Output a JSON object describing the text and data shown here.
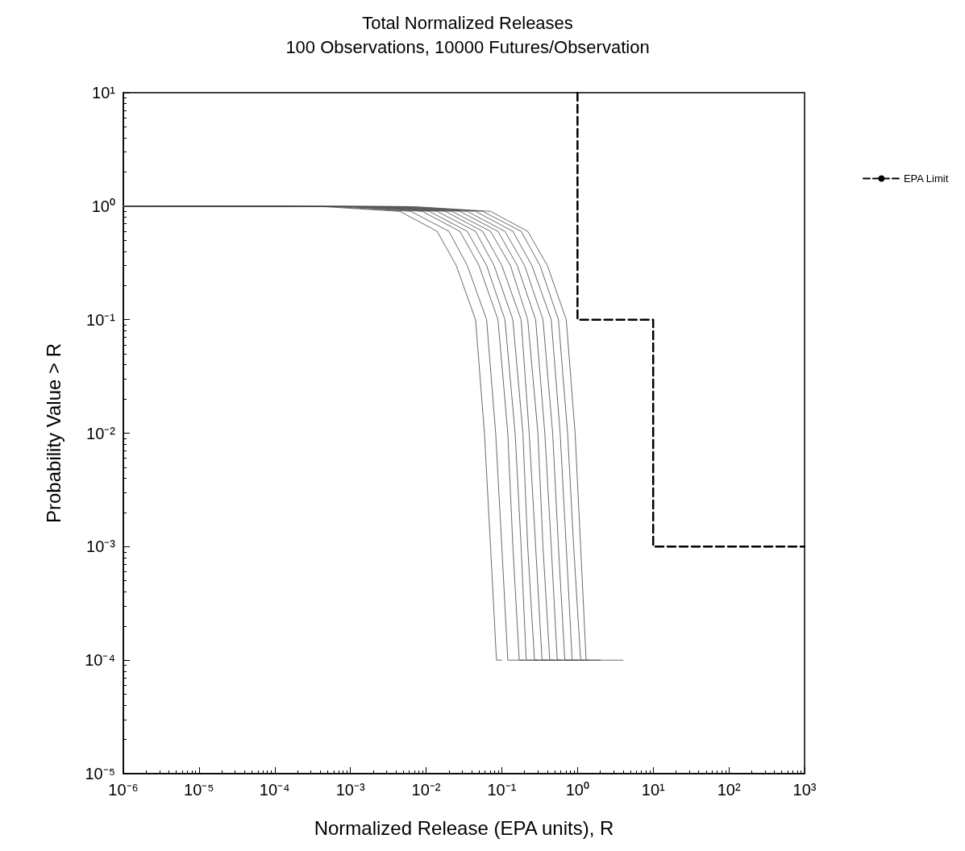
{
  "chart_data": {
    "type": "line",
    "title": "Total Normalized Releases",
    "subtitle": "100 Observations, 10000 Futures/Observation",
    "xlabel": "Normalized Release (EPA units), R",
    "ylabel": "Probability Value > R",
    "log": "xy",
    "grid": false,
    "legend": "right",
    "marker": "none",
    "xlim": [
      1e-06,
      1000
    ],
    "ylim": [
      1e-05,
      10
    ],
    "xticks": [
      {
        "value": 1e-06,
        "label": "10⁻⁶"
      },
      {
        "value": 1e-05,
        "label": "10⁻⁵"
      },
      {
        "value": 0.0001,
        "label": "10⁻⁴"
      },
      {
        "value": 0.001,
        "label": "10⁻³"
      },
      {
        "value": 0.01,
        "label": "10⁻²"
      },
      {
        "value": 0.1,
        "label": "10⁻¹"
      },
      {
        "value": 1,
        "label": "10⁰"
      },
      {
        "value": 10,
        "label": "10¹"
      },
      {
        "value": 100,
        "label": "10²"
      },
      {
        "value": 1000,
        "label": "10³"
      }
    ],
    "yticks": [
      {
        "value": 1e-05,
        "label": "10⁻⁵"
      },
      {
        "value": 0.0001,
        "label": "10⁻⁴"
      },
      {
        "value": 0.001,
        "label": "10⁻³"
      },
      {
        "value": 0.01,
        "label": "10⁻²"
      },
      {
        "value": 0.1,
        "label": "10⁻¹"
      },
      {
        "value": 1,
        "label": "10⁰"
      },
      {
        "value": 10,
        "label": "10¹"
      }
    ],
    "series": [
      {
        "color": "#444444",
        "line_style": "solid",
        "x": [
          1e-06,
          0.00045,
          0.0045,
          0.014,
          0.025,
          0.045,
          0.059,
          0.071,
          0.085,
          0.1
        ],
        "values": [
          1,
          0.99,
          0.9,
          0.6,
          0.3,
          0.1,
          0.01,
          0.001,
          0.0001,
          0.0001
        ]
      },
      {
        "color": "#444444",
        "line_style": "solid",
        "x": [
          1e-06,
          0.00063,
          0.0063,
          0.02,
          0.035,
          0.063,
          0.083,
          0.1,
          0.12,
          0.2
        ],
        "values": [
          1,
          0.99,
          0.9,
          0.6,
          0.3,
          0.1,
          0.01,
          0.001,
          0.0001,
          0.0001
        ]
      },
      {
        "color": "#444444",
        "line_style": "solid",
        "x": [
          1e-06,
          0.00089,
          0.0089,
          0.028,
          0.05,
          0.089,
          0.12,
          0.14,
          0.17,
          0.3
        ],
        "values": [
          1,
          0.99,
          0.9,
          0.6,
          0.3,
          0.1,
          0.01,
          0.001,
          0.0001,
          0.0001
        ]
      },
      {
        "color": "#444444",
        "line_style": "solid",
        "x": [
          1e-06,
          0.0011,
          0.011,
          0.035,
          0.063,
          0.11,
          0.15,
          0.18,
          0.21,
          0.4
        ],
        "values": [
          1,
          0.99,
          0.9,
          0.6,
          0.3,
          0.1,
          0.01,
          0.001,
          0.0001,
          0.0001
        ]
      },
      {
        "color": "#444444",
        "line_style": "solid",
        "x": [
          1e-06,
          0.0014,
          0.014,
          0.045,
          0.079,
          0.14,
          0.19,
          0.22,
          0.27,
          0.5
        ],
        "values": [
          1,
          0.99,
          0.9,
          0.6,
          0.3,
          0.1,
          0.01,
          0.001,
          0.0001,
          0.0001
        ]
      },
      {
        "color": "#444444",
        "line_style": "solid",
        "x": [
          1e-06,
          0.0018,
          0.018,
          0.056,
          0.1,
          0.18,
          0.23,
          0.28,
          0.34,
          0.6
        ],
        "values": [
          1,
          0.99,
          0.9,
          0.6,
          0.3,
          0.1,
          0.01,
          0.001,
          0.0001,
          0.0001
        ]
      },
      {
        "color": "#444444",
        "line_style": "solid",
        "x": [
          1e-06,
          0.0022,
          0.022,
          0.071,
          0.13,
          0.22,
          0.3,
          0.35,
          0.43,
          0.8
        ],
        "values": [
          1,
          0.99,
          0.9,
          0.6,
          0.3,
          0.1,
          0.01,
          0.001,
          0.0001,
          0.0001
        ]
      },
      {
        "color": "#444444",
        "line_style": "solid",
        "x": [
          1e-06,
          0.0028,
          0.028,
          0.089,
          0.16,
          0.28,
          0.37,
          0.45,
          0.54,
          1
        ],
        "values": [
          1,
          0.99,
          0.9,
          0.6,
          0.3,
          0.1,
          0.01,
          0.001,
          0.0001,
          0.0001
        ]
      },
      {
        "color": "#444444",
        "line_style": "solid",
        "x": [
          1e-06,
          0.0035,
          0.035,
          0.11,
          0.2,
          0.35,
          0.47,
          0.56,
          0.68,
          1.2
        ],
        "values": [
          1,
          0.99,
          0.9,
          0.6,
          0.3,
          0.1,
          0.01,
          0.001,
          0.0001,
          0.0001
        ]
      },
      {
        "color": "#444444",
        "line_style": "solid",
        "x": [
          1e-06,
          0.0045,
          0.045,
          0.14,
          0.25,
          0.45,
          0.59,
          0.71,
          0.85,
          1.4
        ],
        "values": [
          1,
          0.99,
          0.9,
          0.6,
          0.3,
          0.1,
          0.01,
          0.001,
          0.0001,
          0.0001
        ]
      },
      {
        "color": "#444444",
        "line_style": "solid",
        "x": [
          1e-06,
          0.0056,
          0.056,
          0.18,
          0.32,
          0.56,
          0.74,
          0.89,
          1.1,
          2
        ],
        "values": [
          1,
          0.99,
          0.9,
          0.6,
          0.3,
          0.1,
          0.01,
          0.001,
          0.0001,
          0.0001
        ]
      },
      {
        "color": "#444444",
        "line_style": "solid",
        "x": [
          1e-06,
          0.0071,
          0.071,
          0.22,
          0.4,
          0.71,
          0.93,
          1.1,
          1.3,
          4
        ],
        "values": [
          1,
          0.99,
          0.9,
          0.6,
          0.3,
          0.1,
          0.01,
          0.001,
          0.0001,
          0.0001
        ]
      },
      {
        "name": "EPA Limit",
        "color": "#000000",
        "line_style": "dashed",
        "x": [
          1,
          1,
          10,
          10,
          1000
        ],
        "values": [
          10,
          0.1,
          0.1,
          0.001,
          0.001
        ]
      }
    ]
  }
}
